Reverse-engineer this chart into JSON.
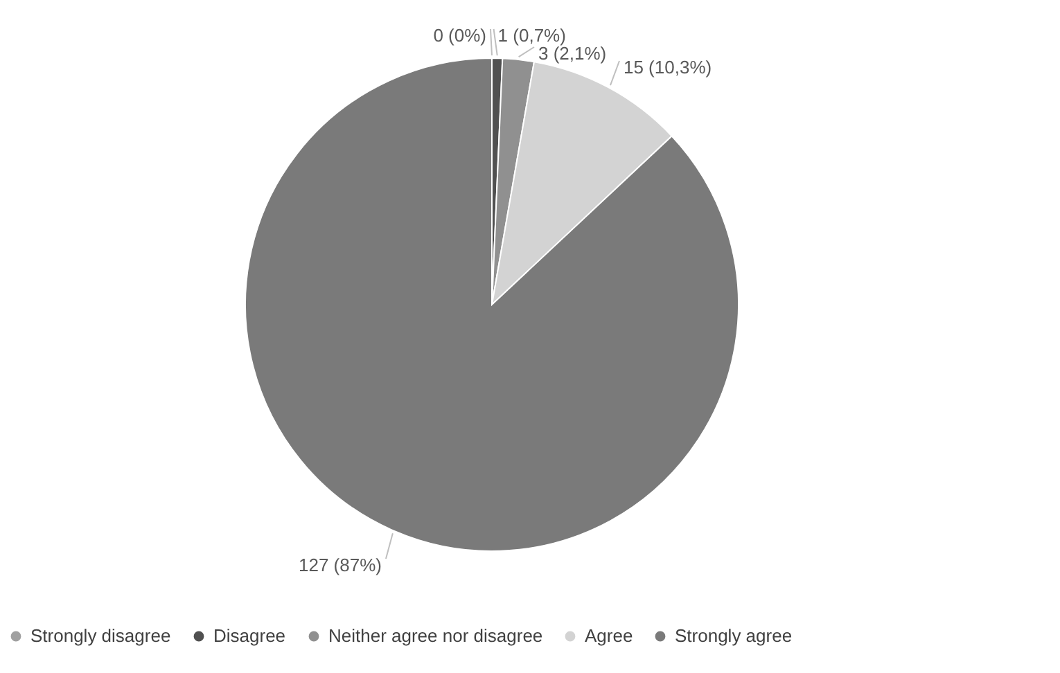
{
  "chart_data": {
    "type": "pie",
    "categories": [
      "Strongly disagree",
      "Disagree",
      "Neither agree nor disagree",
      "Agree",
      "Strongly agree"
    ],
    "values": [
      0,
      1,
      3,
      15,
      127
    ],
    "value_labels": [
      "0 (0%)",
      "1 (0,7%)",
      "3 (2,1%)",
      "15 (10,3%)",
      "127 (87%)"
    ],
    "colors": [
      "#a0a0a0",
      "#505050",
      "#909090",
      "#d3d3d3",
      "#7a7a7a"
    ],
    "legend": "bottom"
  }
}
